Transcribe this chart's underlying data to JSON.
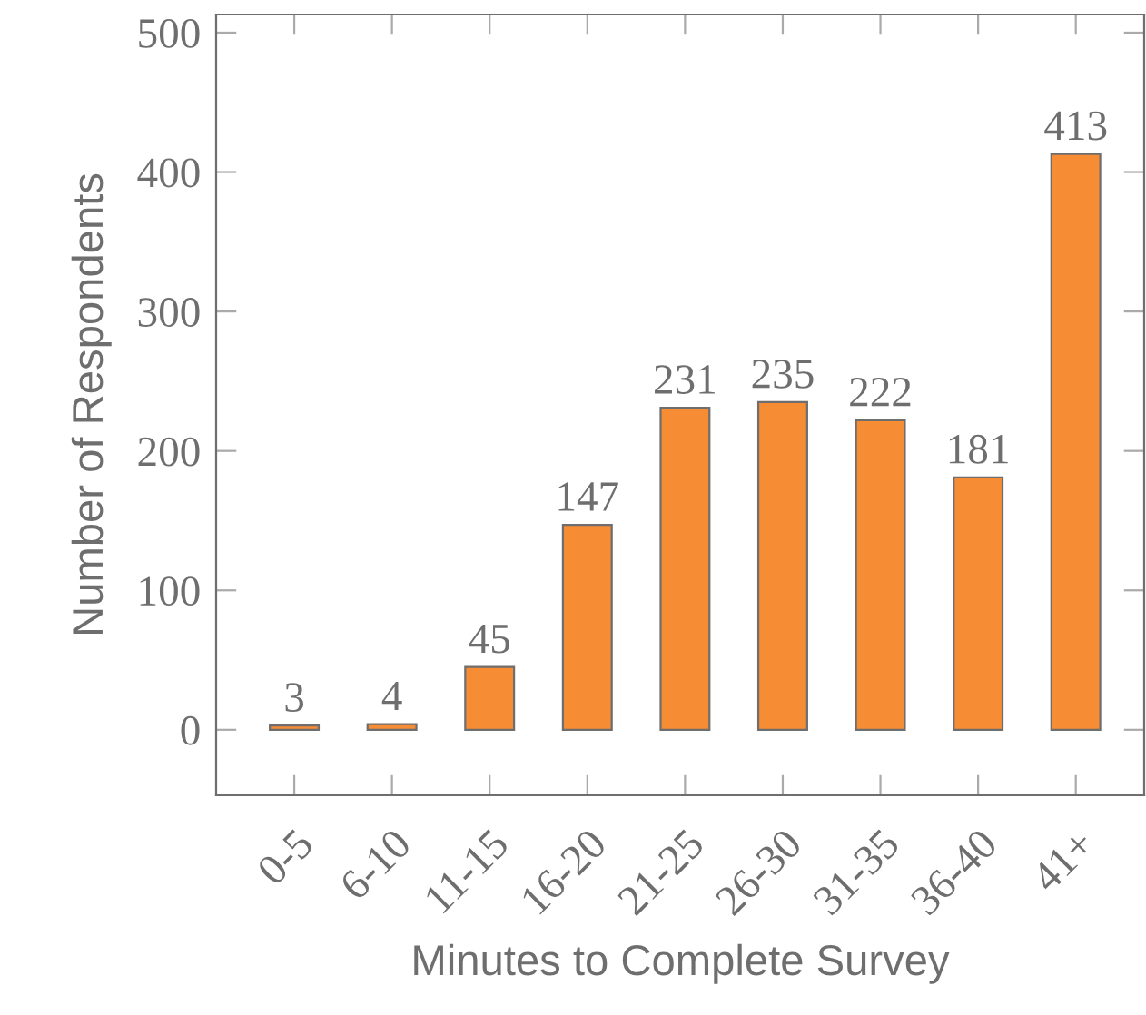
{
  "chart_data": {
    "type": "bar",
    "categories": [
      "0-5",
      "6-10",
      "11-15",
      "16-20",
      "21-25",
      "26-30",
      "31-35",
      "36-40",
      "41+"
    ],
    "values": [
      3,
      4,
      45,
      147,
      231,
      235,
      222,
      181,
      413
    ],
    "color": "#f68c34",
    "xlabel": "Minutes to Complete Survey",
    "ylabel": "Number of Respondents",
    "ylim": [
      -47,
      513
    ],
    "yticks": [
      0,
      100,
      200,
      300,
      400,
      500
    ],
    "data_labels": true,
    "grid": false,
    "legend": false
  }
}
